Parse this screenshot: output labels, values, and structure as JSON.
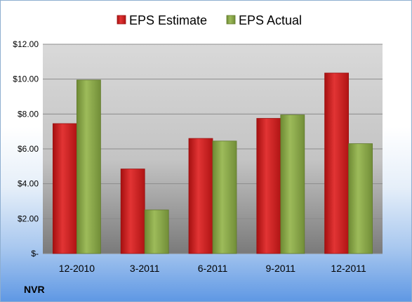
{
  "chart_data": {
    "type": "bar",
    "categories": [
      "12-2010",
      "3-2011",
      "6-2011",
      "9-2011",
      "12-2011"
    ],
    "series": [
      {
        "name": "EPS Estimate",
        "values": [
          7.45,
          4.85,
          6.6,
          7.75,
          10.35
        ],
        "color": "#d01f1f"
      },
      {
        "name": "EPS Actual",
        "values": [
          9.95,
          2.5,
          6.45,
          7.95,
          6.3
        ],
        "color": "#8aa84a"
      }
    ],
    "ylim": [
      0,
      12
    ],
    "yticks": [
      0,
      2,
      4,
      6,
      8,
      10,
      12
    ],
    "ytick_labels": [
      "$-",
      "$2.00",
      "$4.00",
      "$6.00",
      "$8.00",
      "$10.00",
      "$12.00"
    ],
    "grid": true,
    "legend": "top"
  },
  "ticker": "NVR"
}
